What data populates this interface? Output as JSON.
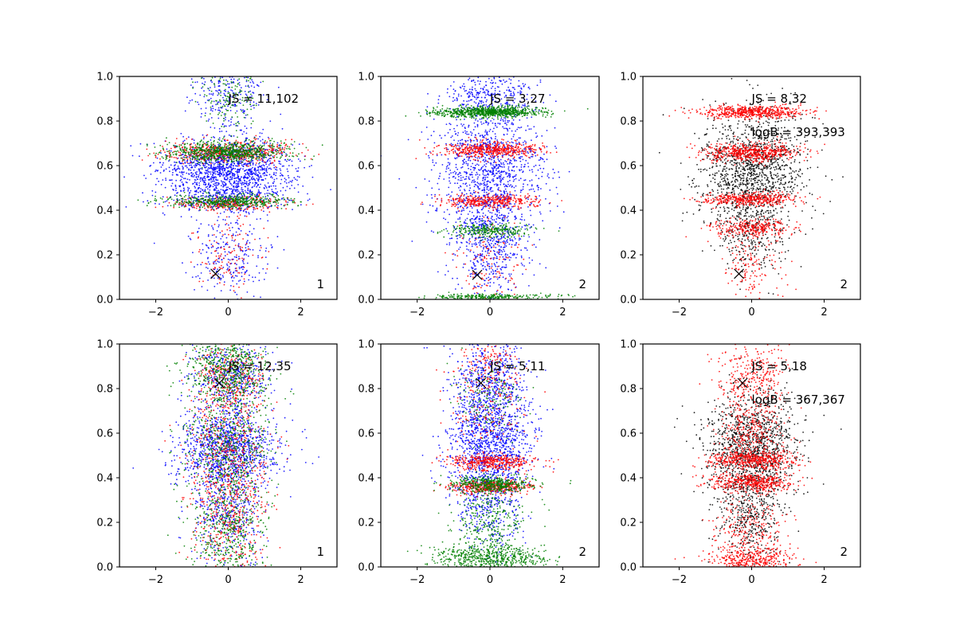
{
  "figure": {
    "background": "#ffffff",
    "colors": {
      "blue": "#0000ff",
      "red": "#ff0000",
      "green": "#008000",
      "black": "#000000"
    }
  },
  "chart_data": [
    {
      "type": "scatter",
      "title": "",
      "xlabel": "",
      "ylabel": "",
      "xlim": [
        -3,
        3
      ],
      "ylim": [
        0,
        1
      ],
      "xticks": [
        -2,
        0,
        2
      ],
      "yticks": [
        0.0,
        0.2,
        0.4,
        0.6,
        0.8,
        1.0
      ],
      "xtick_labels": [
        "−2",
        "0",
        "2"
      ],
      "ytick_labels": [
        "0.0",
        "0.2",
        "0.4",
        "0.6",
        "0.8",
        "1.0"
      ],
      "annotations": {
        "js": "JS = 11,102",
        "logb": "",
        "panel_id": "1"
      },
      "marker_x": {
        "x": -0.35,
        "y": 0.115
      },
      "series": [
        {
          "color": "blue",
          "count": 2200,
          "bands": [
            {
              "y": 0.58,
              "sx": 0.9,
              "sy": 0.07,
              "w": 5
            },
            {
              "y": 0.45,
              "sx": 0.9,
              "sy": 0.03,
              "w": 1
            },
            {
              "y": 0.2,
              "sx": 0.55,
              "sy": 0.1,
              "w": 1
            },
            {
              "y": 0.92,
              "sx": 0.5,
              "sy": 0.08,
              "w": 1
            }
          ]
        },
        {
          "color": "red",
          "count": 900,
          "bands": [
            {
              "y": 0.66,
              "sx": 0.85,
              "sy": 0.025,
              "w": 4
            },
            {
              "y": 0.43,
              "sx": 0.8,
              "sy": 0.015,
              "w": 2
            },
            {
              "y": 0.2,
              "sx": 0.5,
              "sy": 0.1,
              "w": 1
            }
          ]
        },
        {
          "color": "green",
          "count": 1400,
          "bands": [
            {
              "y": 0.66,
              "sx": 0.85,
              "sy": 0.022,
              "w": 5
            },
            {
              "y": 0.44,
              "sx": 0.8,
              "sy": 0.015,
              "w": 3
            },
            {
              "y": 0.9,
              "sx": 0.4,
              "sy": 0.08,
              "w": 1
            }
          ]
        }
      ]
    },
    {
      "type": "scatter",
      "title": "",
      "xlabel": "",
      "ylabel": "",
      "xlim": [
        -3,
        3
      ],
      "ylim": [
        0,
        1
      ],
      "xticks": [
        -2,
        0,
        2
      ],
      "yticks": [
        0.0,
        0.2,
        0.4,
        0.6,
        0.8,
        1.0
      ],
      "xtick_labels": [
        "−2",
        "0",
        "2"
      ],
      "ytick_labels": [
        "0.0",
        "0.2",
        "0.4",
        "0.6",
        "0.8",
        "1.0"
      ],
      "annotations": {
        "js": "JS = 3,27",
        "logb": "",
        "panel_id": "2"
      },
      "marker_x": {
        "x": -0.35,
        "y": 0.11
      },
      "series": [
        {
          "color": "blue",
          "count": 2000,
          "bands": [
            {
              "y": 0.58,
              "sx": 0.75,
              "sy": 0.16,
              "w": 5
            },
            {
              "y": 0.25,
              "sx": 0.5,
              "sy": 0.12,
              "w": 2
            },
            {
              "y": 0.92,
              "sx": 0.6,
              "sy": 0.05,
              "w": 1
            }
          ]
        },
        {
          "color": "red",
          "count": 1000,
          "bands": [
            {
              "y": 0.67,
              "sx": 0.7,
              "sy": 0.018,
              "w": 4
            },
            {
              "y": 0.44,
              "sx": 0.7,
              "sy": 0.015,
              "w": 3
            },
            {
              "y": 0.15,
              "sx": 0.4,
              "sy": 0.1,
              "w": 1
            }
          ]
        },
        {
          "color": "green",
          "count": 1400,
          "bands": [
            {
              "y": 0.84,
              "sx": 0.75,
              "sy": 0.012,
              "w": 6
            },
            {
              "y": 0.31,
              "sx": 0.6,
              "sy": 0.015,
              "w": 2
            },
            {
              "y": 0.01,
              "sx": 0.9,
              "sy": 0.008,
              "w": 2
            }
          ]
        }
      ]
    },
    {
      "type": "scatter",
      "title": "",
      "xlabel": "",
      "ylabel": "",
      "xlim": [
        -3,
        3
      ],
      "ylim": [
        0,
        1
      ],
      "xticks": [
        -2,
        0,
        2
      ],
      "yticks": [
        0.0,
        0.2,
        0.4,
        0.6,
        0.8,
        1.0
      ],
      "xtick_labels": [
        "−2",
        "0",
        "2"
      ],
      "ytick_labels": [
        "0.0",
        "0.2",
        "0.4",
        "0.6",
        "0.8",
        "1.0"
      ],
      "annotations": {
        "js": "JS = 8,32",
        "logb": "logB = 393,393",
        "panel_id": "2"
      },
      "marker_x": {
        "x": -0.35,
        "y": 0.115
      },
      "series": [
        {
          "color": "black",
          "count": 1600,
          "bands": [
            {
              "y": 0.58,
              "sx": 0.75,
              "sy": 0.14,
              "w": 5
            },
            {
              "y": 0.3,
              "sx": 0.5,
              "sy": 0.1,
              "w": 1
            }
          ]
        },
        {
          "color": "red",
          "count": 2000,
          "bands": [
            {
              "y": 0.84,
              "sx": 0.7,
              "sy": 0.015,
              "w": 4
            },
            {
              "y": 0.66,
              "sx": 0.65,
              "sy": 0.02,
              "w": 4
            },
            {
              "y": 0.45,
              "sx": 0.65,
              "sy": 0.015,
              "w": 3
            },
            {
              "y": 0.32,
              "sx": 0.55,
              "sy": 0.02,
              "w": 2
            },
            {
              "y": 0.15,
              "sx": 0.4,
              "sy": 0.08,
              "w": 1
            }
          ]
        }
      ]
    },
    {
      "type": "scatter",
      "title": "",
      "xlabel": "",
      "ylabel": "",
      "xlim": [
        -3,
        3
      ],
      "ylim": [
        0,
        1
      ],
      "xticks": [
        -2,
        0,
        2
      ],
      "yticks": [
        0.0,
        0.2,
        0.4,
        0.6,
        0.8,
        1.0
      ],
      "xtick_labels": [
        "−2",
        "0",
        "2"
      ],
      "ytick_labels": [
        "0.0",
        "0.2",
        "0.4",
        "0.6",
        "0.8",
        "1.0"
      ],
      "annotations": {
        "js": "JS = 12,35",
        "logb": "",
        "panel_id": "1"
      },
      "marker_x": {
        "x": -0.25,
        "y": 0.825
      },
      "series": [
        {
          "color": "blue",
          "count": 2000,
          "bands": [
            {
              "y": 0.53,
              "sx": 0.7,
              "sy": 0.09,
              "w": 5
            },
            {
              "y": 0.25,
              "sx": 0.5,
              "sy": 0.12,
              "w": 2
            },
            {
              "y": 0.85,
              "sx": 0.55,
              "sy": 0.08,
              "w": 2
            }
          ]
        },
        {
          "color": "red",
          "count": 1100,
          "bands": [
            {
              "y": 0.5,
              "sx": 0.6,
              "sy": 0.15,
              "w": 3
            },
            {
              "y": 0.2,
              "sx": 0.5,
              "sy": 0.12,
              "w": 2
            },
            {
              "y": 0.85,
              "sx": 0.5,
              "sy": 0.08,
              "w": 2
            }
          ]
        },
        {
          "color": "green",
          "count": 1600,
          "bands": [
            {
              "y": 0.55,
              "sx": 0.6,
              "sy": 0.14,
              "w": 3
            },
            {
              "y": 0.15,
              "sx": 0.5,
              "sy": 0.1,
              "w": 2
            },
            {
              "y": 0.9,
              "sx": 0.55,
              "sy": 0.08,
              "w": 3
            }
          ]
        }
      ]
    },
    {
      "type": "scatter",
      "title": "",
      "xlabel": "",
      "ylabel": "",
      "xlim": [
        -3,
        3
      ],
      "ylim": [
        0,
        1
      ],
      "xticks": [
        -2,
        0,
        2
      ],
      "yticks": [
        0.0,
        0.2,
        0.4,
        0.6,
        0.8,
        1.0
      ],
      "xtick_labels": [
        "−2",
        "0",
        "2"
      ],
      "ytick_labels": [
        "0.0",
        "0.2",
        "0.4",
        "0.6",
        "0.8",
        "1.0"
      ],
      "annotations": {
        "js": "JS = 5,11",
        "logb": "",
        "panel_id": "2"
      },
      "marker_x": {
        "x": -0.25,
        "y": 0.825
      },
      "series": [
        {
          "color": "blue",
          "count": 2000,
          "bands": [
            {
              "y": 0.58,
              "sx": 0.6,
              "sy": 0.12,
              "w": 5
            },
            {
              "y": 0.3,
              "sx": 0.45,
              "sy": 0.12,
              "w": 2
            },
            {
              "y": 0.85,
              "sx": 0.5,
              "sy": 0.08,
              "w": 2
            }
          ]
        },
        {
          "color": "red",
          "count": 1100,
          "bands": [
            {
              "y": 0.47,
              "sx": 0.6,
              "sy": 0.018,
              "w": 3
            },
            {
              "y": 0.36,
              "sx": 0.55,
              "sy": 0.015,
              "w": 3
            },
            {
              "y": 0.7,
              "sx": 0.5,
              "sy": 0.1,
              "w": 1
            },
            {
              "y": 0.9,
              "sx": 0.45,
              "sy": 0.07,
              "w": 1
            }
          ]
        },
        {
          "color": "green",
          "count": 1500,
          "bands": [
            {
              "y": 0.04,
              "sx": 0.8,
              "sy": 0.03,
              "w": 4
            },
            {
              "y": 0.37,
              "sx": 0.55,
              "sy": 0.018,
              "w": 3
            },
            {
              "y": 0.2,
              "sx": 0.5,
              "sy": 0.08,
              "w": 2
            },
            {
              "y": 0.75,
              "sx": 0.5,
              "sy": 0.1,
              "w": 1
            }
          ]
        }
      ]
    },
    {
      "type": "scatter",
      "title": "",
      "xlabel": "",
      "ylabel": "",
      "xlim": [
        -3,
        3
      ],
      "ylim": [
        0,
        1
      ],
      "xticks": [
        -2,
        0,
        2
      ],
      "yticks": [
        0.0,
        0.2,
        0.4,
        0.6,
        0.8,
        1.0
      ],
      "xtick_labels": [
        "−2",
        "0",
        "2"
      ],
      "ytick_labels": [
        "0.0",
        "0.2",
        "0.4",
        "0.6",
        "0.8",
        "1.0"
      ],
      "annotations": {
        "js": "JS = 5,18",
        "logb": "logB = 367,367",
        "panel_id": "2"
      },
      "marker_x": {
        "x": -0.25,
        "y": 0.825
      },
      "series": [
        {
          "color": "black",
          "count": 1600,
          "bands": [
            {
              "y": 0.55,
              "sx": 0.65,
              "sy": 0.12,
              "w": 5
            },
            {
              "y": 0.25,
              "sx": 0.45,
              "sy": 0.12,
              "w": 2
            }
          ]
        },
        {
          "color": "red",
          "count": 2200,
          "bands": [
            {
              "y": 0.48,
              "sx": 0.6,
              "sy": 0.02,
              "w": 3
            },
            {
              "y": 0.38,
              "sx": 0.55,
              "sy": 0.02,
              "w": 3
            },
            {
              "y": 0.6,
              "sx": 0.5,
              "sy": 0.08,
              "w": 2
            },
            {
              "y": 0.85,
              "sx": 0.45,
              "sy": 0.08,
              "w": 2
            },
            {
              "y": 0.15,
              "sx": 0.5,
              "sy": 0.1,
              "w": 2
            },
            {
              "y": 0.03,
              "sx": 0.6,
              "sy": 0.025,
              "w": 2
            }
          ]
        }
      ]
    }
  ]
}
